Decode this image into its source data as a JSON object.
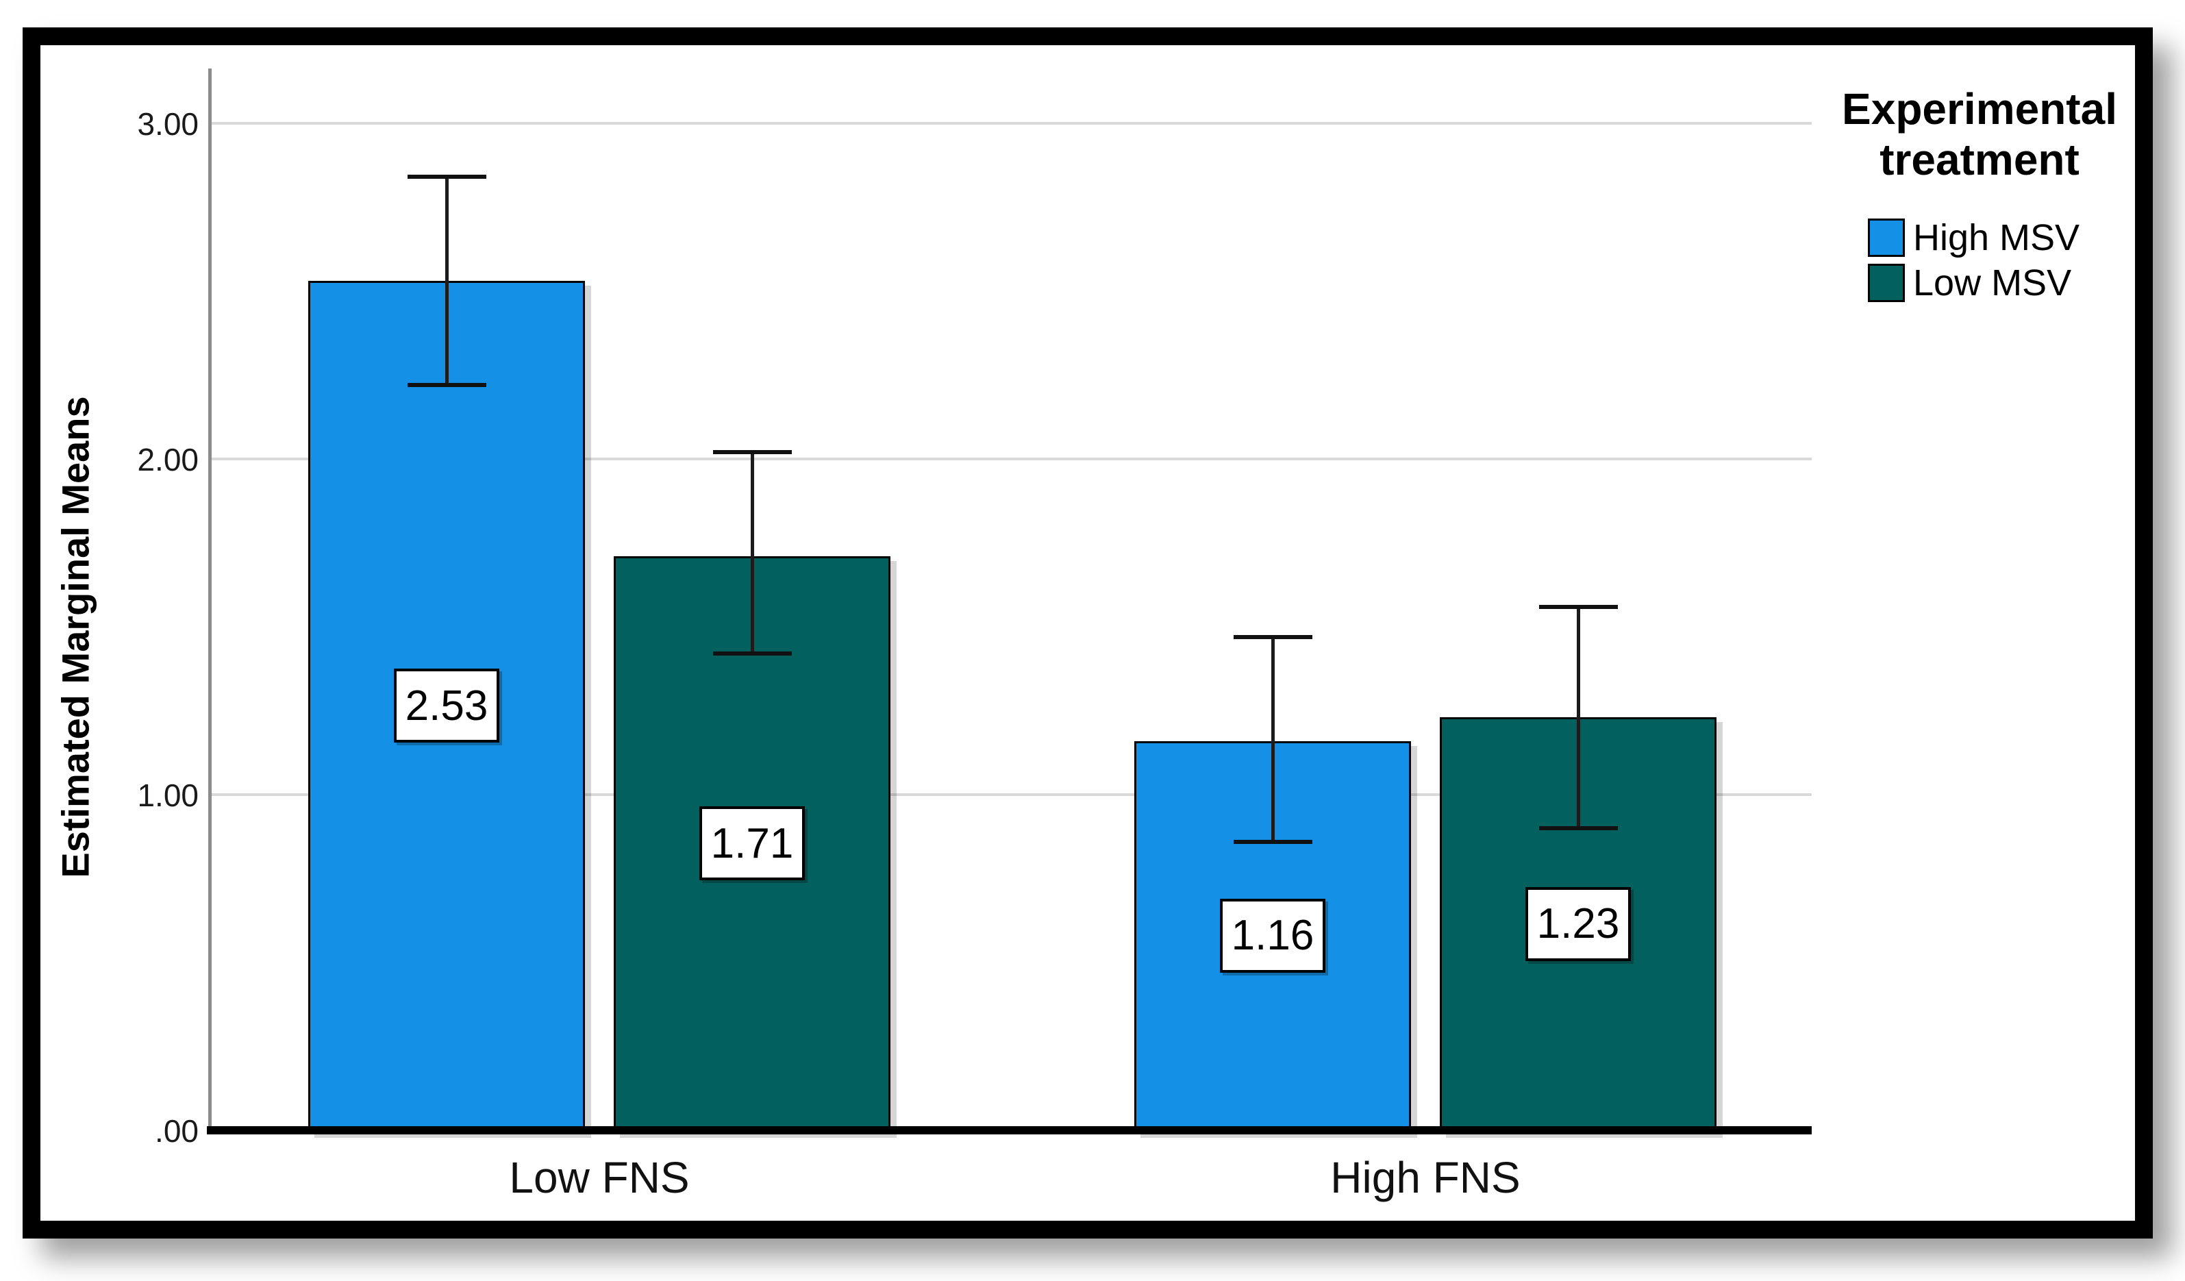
{
  "chart_data": {
    "type": "bar",
    "title": "",
    "ylabel": "Estimated Marginal Means",
    "categories": [
      "Low FNS",
      "High FNS"
    ],
    "series": [
      {
        "name": "High MSV",
        "color": "#1490E6",
        "values": [
          2.53,
          1.16
        ],
        "value_labels": [
          "2.53",
          "1.16"
        ],
        "error_upper": [
          2.84,
          1.47
        ],
        "error_lower": [
          2.22,
          0.86
        ]
      },
      {
        "name": "Low MSV",
        "color": "#02605F",
        "values": [
          1.71,
          1.23
        ],
        "value_labels": [
          "1.71",
          "1.23"
        ],
        "error_upper": [
          2.02,
          1.56
        ],
        "error_lower": [
          1.42,
          0.9
        ]
      }
    ],
    "y_ticks": [
      {
        "label": "3.00",
        "value": 3.0
      },
      {
        "label": "2.00",
        "value": 2.0
      },
      {
        "label": "1.00",
        "value": 1.0
      },
      {
        "label": ".00",
        "value": 0.0
      }
    ],
    "ylim": [
      0,
      3.16
    ],
    "grid": "horizontal",
    "error_bars": true,
    "legend": {
      "title": "Experimental treatment",
      "title_lines": [
        "Experimental",
        "treatment"
      ],
      "position": "top-right"
    }
  },
  "colors": {
    "gridline": "#D9D9D9",
    "axis_line": "#8C8C8C",
    "baseline": "#000000",
    "frame_border": "#000000",
    "value_box_bg": "#FFFFFF"
  }
}
